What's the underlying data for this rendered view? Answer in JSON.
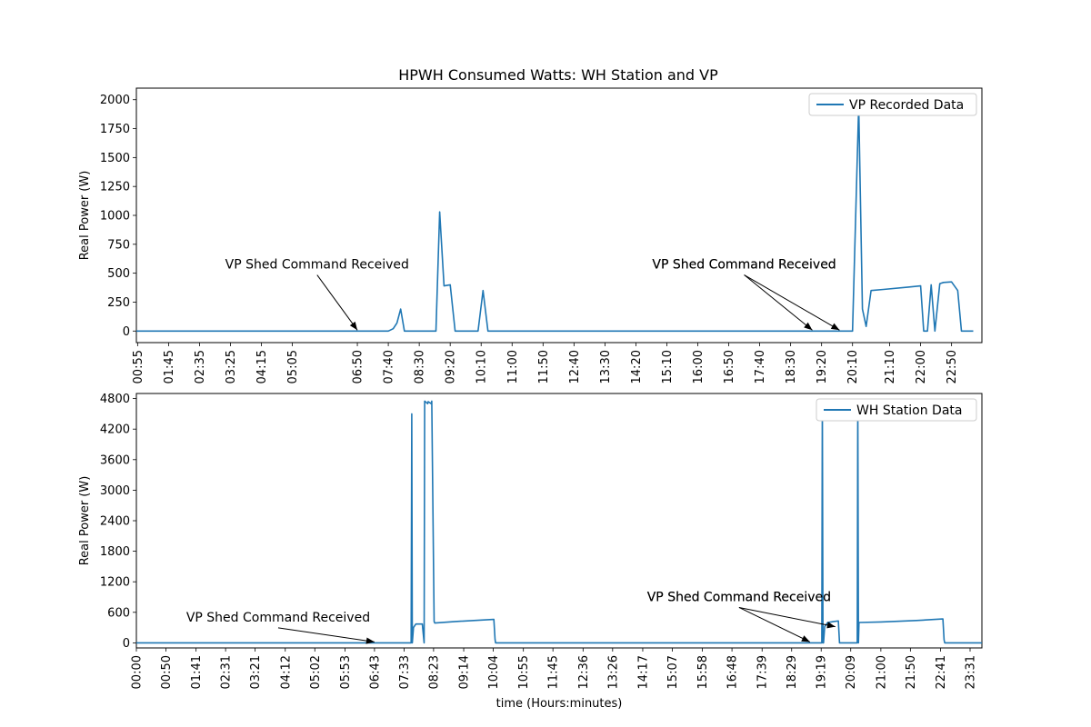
{
  "title": "HPWH Consumed Watts: WH Station and VP",
  "chart_data": [
    {
      "type": "line",
      "ylabel": "Real Power (W)",
      "xlabel": "",
      "ylim": [
        -100,
        2100
      ],
      "yticks": [
        0,
        250,
        500,
        750,
        1000,
        1250,
        1500,
        1750,
        2000
      ],
      "xlim": [
        "00:53",
        "23:39"
      ],
      "xticks": [
        "00:55",
        "01:45",
        "02:35",
        "03:25",
        "04:15",
        "05:05",
        "06:50",
        "07:40",
        "08:30",
        "09:20",
        "10:10",
        "11:00",
        "11:50",
        "12:40",
        "13:30",
        "14:20",
        "15:10",
        "16:00",
        "16:50",
        "17:40",
        "18:30",
        "19:20",
        "20:10",
        "21:10",
        "22:00",
        "22:50"
      ],
      "grid": false,
      "legend_position": "top-right",
      "series": [
        {
          "name": "VP Recorded Data",
          "color": "#1f77b4",
          "x": [
            "00:53",
            "07:40",
            "07:48",
            "07:54",
            "08:00",
            "08:06",
            "08:57",
            "09:03",
            "09:10",
            "09:20",
            "09:28",
            "10:05",
            "10:13",
            "10:21",
            "20:10",
            "20:20",
            "20:26",
            "20:32",
            "20:40",
            "21:00",
            "21:40",
            "22:00",
            "22:05",
            "22:11",
            "22:17",
            "22:23",
            "22:31",
            "22:37",
            "22:50",
            "23:00",
            "23:06",
            "23:10",
            "23:25"
          ],
          "values": [
            0,
            0,
            20,
            70,
            190,
            0,
            0,
            1030,
            390,
            400,
            0,
            0,
            350,
            0,
            0,
            1950,
            190,
            40,
            350,
            360,
            380,
            390,
            0,
            0,
            400,
            0,
            410,
            420,
            425,
            350,
            0,
            0,
            0
          ]
        }
      ],
      "annotations": [
        {
          "text": "VP Shed Command Received",
          "at": "06:50",
          "y": 0,
          "text_x": "05:45",
          "text_y": 540
        },
        {
          "text": "VP Shed Command Received",
          "at": "19:05",
          "y": 0,
          "text_x": "17:15",
          "text_y": 540
        },
        {
          "text": "VP Shed Command Received",
          "at": "19:49",
          "y": 0,
          "text_x": "17:15",
          "text_y": 540
        }
      ]
    },
    {
      "type": "line",
      "ylabel": "Real Power (W)",
      "xlabel": "time (Hours:minutes)",
      "ylim": [
        -100,
        4900
      ],
      "yticks": [
        0,
        600,
        1200,
        1800,
        2400,
        3000,
        3600,
        4200,
        4800
      ],
      "xlim": [
        "00:00",
        "23:51"
      ],
      "xticks": [
        "00:00",
        "00:50",
        "01:41",
        "02:31",
        "03:21",
        "04:12",
        "05:02",
        "05:53",
        "06:43",
        "07:33",
        "08:23",
        "09:14",
        "10:04",
        "10:55",
        "11:45",
        "12:36",
        "13:26",
        "14:17",
        "15:07",
        "15:58",
        "16:48",
        "17:39",
        "18:29",
        "19:19",
        "20:09",
        "21:00",
        "21:50",
        "22:41",
        "23:31"
      ],
      "grid": false,
      "legend_position": "top-right",
      "series": [
        {
          "name": "WH Station Data",
          "color": "#1f77b4",
          "x": [
            "00:00",
            "07:45",
            "07:46",
            "07:47",
            "07:49",
            "07:53",
            "08:04",
            "08:07",
            "08:08",
            "08:13",
            "08:14",
            "08:19",
            "08:20",
            "08:24",
            "08:25",
            "09:00",
            "10:05",
            "10:07",
            "10:08",
            "19:20",
            "19:21",
            "19:22",
            "19:23",
            "19:25",
            "19:30",
            "19:40",
            "19:48",
            "19:50",
            "20:20",
            "20:21",
            "20:22",
            "20:23",
            "21:00",
            "22:00",
            "22:45",
            "22:47",
            "22:48",
            "23:51"
          ],
          "values": [
            0,
            0,
            4500,
            0,
            300,
            370,
            370,
            0,
            4750,
            4700,
            4740,
            4700,
            4750,
            420,
            390,
            420,
            460,
            70,
            0,
            0,
            4750,
            0,
            0,
            320,
            400,
            420,
            430,
            0,
            0,
            4750,
            0,
            400,
            410,
            440,
            470,
            60,
            0,
            0
          ]
        }
      ],
      "annotations": [
        {
          "text": "VP Shed Command Received",
          "at": "06:43",
          "y": 0,
          "text_x": "04:00",
          "text_y": 420
        },
        {
          "text": "VP Shed Command Received",
          "at": "19:00",
          "y": 0,
          "text_x": "17:00",
          "text_y": 820
        },
        {
          "text": "VP Shed Command Received",
          "at": "19:43",
          "y": 300,
          "text_x": "17:00",
          "text_y": 820
        }
      ]
    }
  ]
}
